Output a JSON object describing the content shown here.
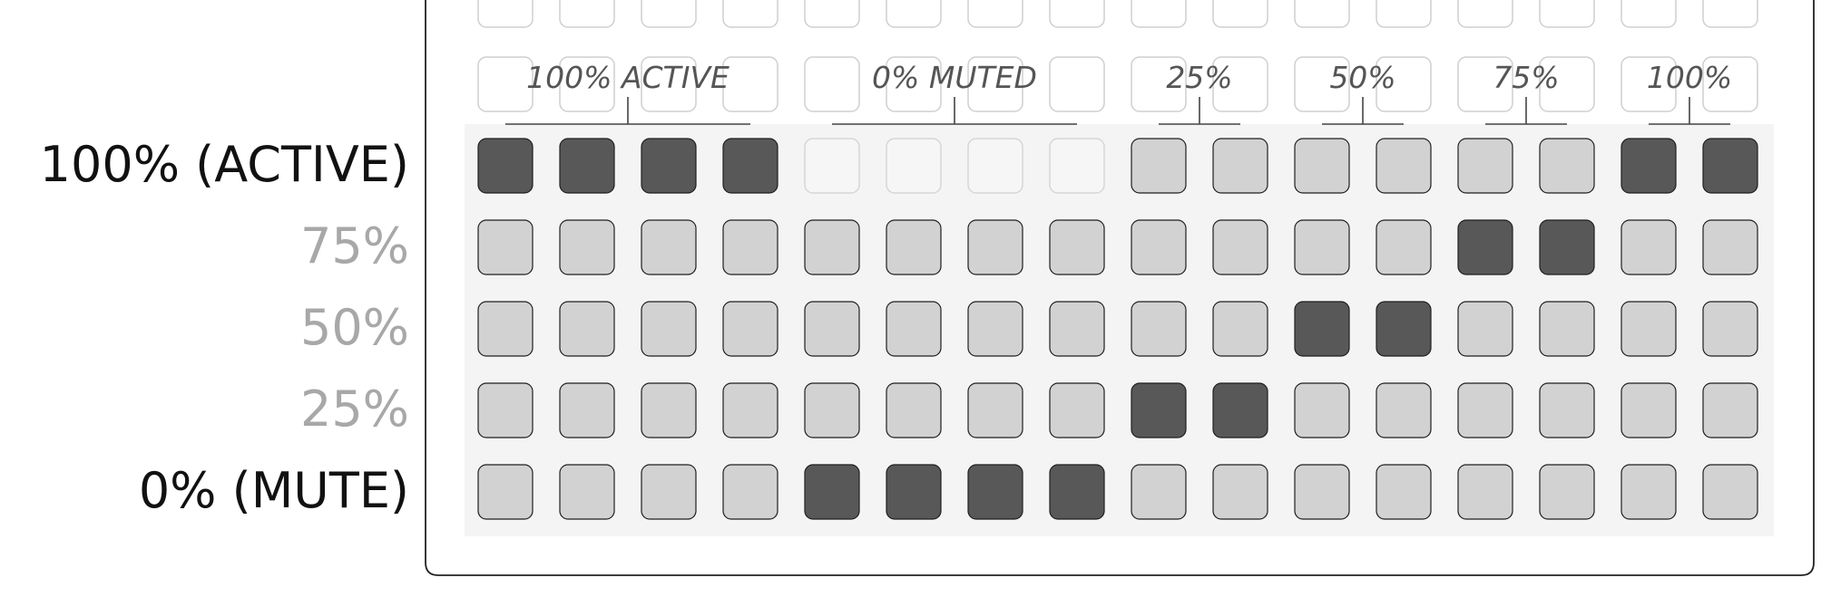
{
  "row_labels": [
    {
      "text": "100% (ACTIVE)",
      "emphasis": "strong"
    },
    {
      "text": "75%",
      "emphasis": "muted"
    },
    {
      "text": "50%",
      "emphasis": "muted"
    },
    {
      "text": "25%",
      "emphasis": "muted"
    },
    {
      "text": "0% (MUTE)",
      "emphasis": "strong"
    }
  ],
  "column_groups": [
    {
      "label": "100% ACTIVE",
      "start": 0,
      "span": 4
    },
    {
      "label": "0% MUTED",
      "start": 4,
      "span": 4
    },
    {
      "label": "25%",
      "start": 8,
      "span": 2
    },
    {
      "label": "50%",
      "start": 10,
      "span": 2
    },
    {
      "label": "75%",
      "start": 12,
      "span": 2
    },
    {
      "label": "100%",
      "start": 14,
      "span": 2
    }
  ],
  "columns": 16,
  "pad_states": [
    "1111oooo00000011",
    "0000000000001100",
    "0000000000110000",
    "0000000011000000",
    "0000111100000000"
  ],
  "pad_state_legend": {
    "1": "lit",
    "0": "unlit",
    "o": "off"
  },
  "colors": {
    "lit": "#575857",
    "unlit": "#d2d2d2",
    "off": "#f4f4f4",
    "grid_background": "#f4f4f4",
    "strong_label": "#111111",
    "muted_label": "#a8a8a8",
    "group_label": "#555555",
    "ghost_pad_border": "#cfcfcf",
    "frame": "#222222"
  }
}
